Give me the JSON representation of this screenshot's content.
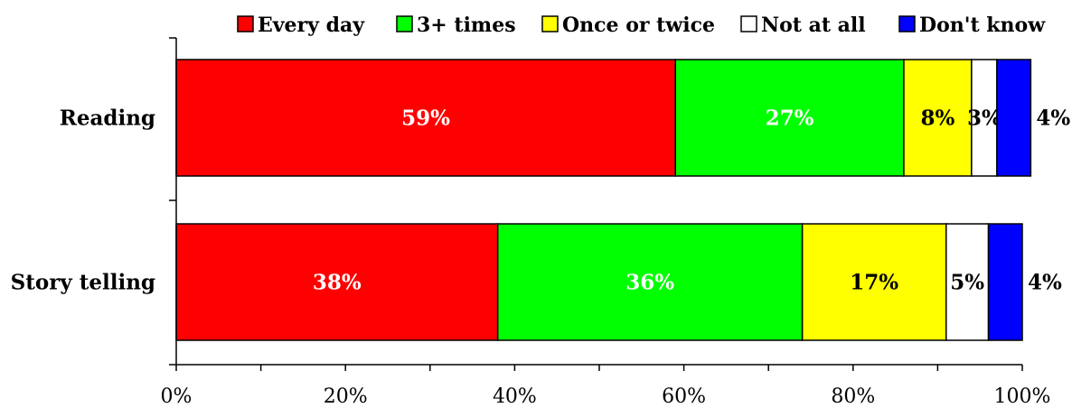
{
  "chart_data": {
    "type": "bar",
    "orientation": "horizontal",
    "stacked": true,
    "categories": [
      "Reading",
      "Story telling"
    ],
    "series": [
      {
        "name": "Every day",
        "color": "#ff0000",
        "label_color": "#ffffff",
        "values": [
          59,
          38
        ]
      },
      {
        "name": "3+ times",
        "color": "#00ff00",
        "label_color": "#ffffff",
        "values": [
          27,
          36
        ]
      },
      {
        "name": "Once or twice",
        "color": "#ffff00",
        "label_color": "#000000",
        "values": [
          8,
          17
        ]
      },
      {
        "name": "Not at all",
        "color": "#ffffff",
        "label_color": "#000000",
        "values": [
          3,
          5
        ]
      },
      {
        "name": "Don't know",
        "color": "#0000ff",
        "label_color": "#000000",
        "values": [
          4,
          4
        ]
      }
    ],
    "data_labels": [
      [
        "59%",
        "27%",
        "8%",
        "3%",
        "4%"
      ],
      [
        "38%",
        "36%",
        "17%",
        "5%",
        "4%"
      ]
    ],
    "x_ticks": [
      "0%",
      "20%",
      "40%",
      "60%",
      "80%",
      "100%"
    ],
    "xlim": [
      0,
      100
    ],
    "legend_position": "top",
    "grid": false
  }
}
